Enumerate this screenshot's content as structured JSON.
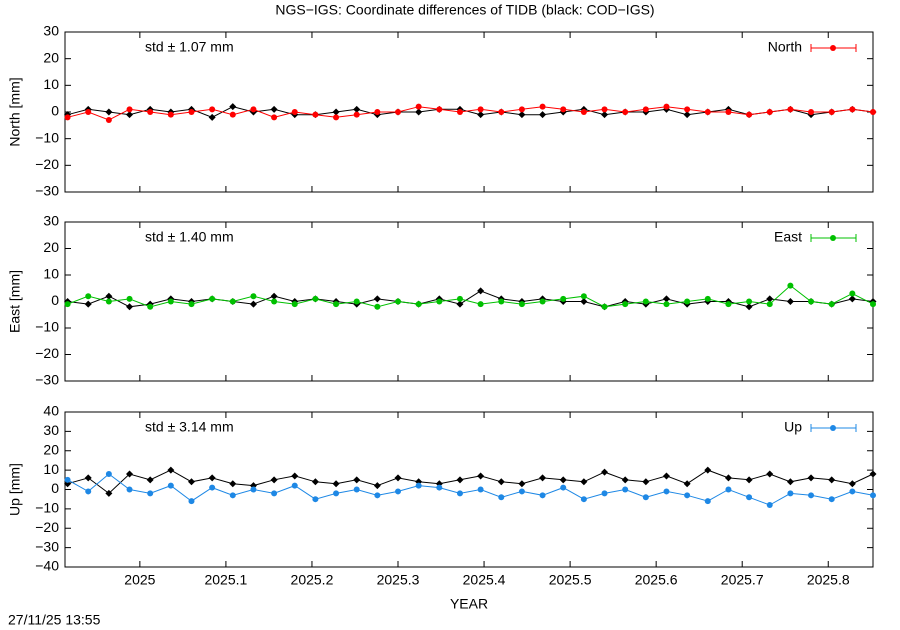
{
  "title": "NGS−IGS: Coordinate differences of TIDB (black: COD−IGS)",
  "timestamp": "27/11/25 13:55",
  "chart_data": [
    {
      "type": "line",
      "ylabel": "North [mm]",
      "annotation": "std ± 1.07 mm",
      "annotation_color": "#ff0000",
      "xlim": [
        2024.913,
        2025.852
      ],
      "xticks": [
        2025,
        2025.1,
        2025.2,
        2025.3,
        2025.4,
        2025.5,
        2025.6,
        2025.7,
        2025.8
      ],
      "xtick_labels": false,
      "ylim": [
        -30,
        30
      ],
      "yticks": [
        {
          "value": -30,
          "label": "−30"
        },
        {
          "value": -20,
          "label": "−20"
        },
        {
          "value": -10,
          "label": "−10"
        },
        0,
        10,
        20,
        30
      ],
      "x": [
        2024.916,
        2024.94,
        2024.964,
        2024.988,
        2025.012,
        2025.036,
        2025.06,
        2025.084,
        2025.108,
        2025.132,
        2025.156,
        2025.18,
        2025.204,
        2025.228,
        2025.252,
        2025.276,
        2025.3,
        2025.324,
        2025.348,
        2025.372,
        2025.396,
        2025.42,
        2025.444,
        2025.468,
        2025.492,
        2025.516,
        2025.54,
        2025.564,
        2025.588,
        2025.612,
        2025.636,
        2025.66,
        2025.684,
        2025.708,
        2025.732,
        2025.756,
        2025.78,
        2025.804,
        2025.828,
        2025.852
      ],
      "series": [
        {
          "color": "#000000",
          "marker": "diamond",
          "values": [
            -1,
            1,
            0,
            -1,
            1,
            0,
            1,
            -2,
            2,
            0,
            1,
            -1,
            -1,
            0,
            1,
            -1,
            0,
            0,
            1,
            1,
            -1,
            0,
            -1,
            -1,
            0,
            1,
            -1,
            0,
            0,
            1,
            -1,
            0,
            1,
            -1,
            0,
            1,
            -1,
            0,
            1,
            0
          ]
        },
        {
          "name": "North",
          "color": "#ff0000",
          "marker": "circle",
          "values": [
            -2,
            0,
            -3,
            1,
            0,
            -1,
            0,
            1,
            -1,
            1,
            -2,
            0,
            -1,
            -2,
            -1,
            0,
            0,
            2,
            1,
            0,
            1,
            0,
            1,
            2,
            1,
            0,
            1,
            0,
            1,
            2,
            1,
            0,
            0,
            -1,
            0,
            1,
            0,
            0,
            1,
            0
          ]
        }
      ]
    },
    {
      "type": "line",
      "ylabel": "East [mm]",
      "annotation": "std ± 1.40 mm",
      "annotation_color": "#00c000",
      "xlim": [
        2024.913,
        2025.852
      ],
      "xticks": [
        2025,
        2025.1,
        2025.2,
        2025.3,
        2025.4,
        2025.5,
        2025.6,
        2025.7,
        2025.8
      ],
      "xtick_labels": false,
      "ylim": [
        -30,
        30
      ],
      "yticks": [
        {
          "value": -30,
          "label": "−30"
        },
        {
          "value": -20,
          "label": "−20"
        },
        {
          "value": -10,
          "label": "−10"
        },
        0,
        10,
        20,
        30
      ],
      "x": [
        2024.916,
        2024.94,
        2024.964,
        2024.988,
        2025.012,
        2025.036,
        2025.06,
        2025.084,
        2025.108,
        2025.132,
        2025.156,
        2025.18,
        2025.204,
        2025.228,
        2025.252,
        2025.276,
        2025.3,
        2025.324,
        2025.348,
        2025.372,
        2025.396,
        2025.42,
        2025.444,
        2025.468,
        2025.492,
        2025.516,
        2025.54,
        2025.564,
        2025.588,
        2025.612,
        2025.636,
        2025.66,
        2025.684,
        2025.708,
        2025.732,
        2025.756,
        2025.78,
        2025.804,
        2025.828,
        2025.852
      ],
      "series": [
        {
          "color": "#000000",
          "marker": "diamond",
          "values": [
            0,
            -1,
            2,
            -2,
            -1,
            1,
            0,
            1,
            0,
            -1,
            2,
            0,
            1,
            0,
            -1,
            1,
            0,
            -1,
            1,
            -1,
            4,
            1,
            0,
            1,
            0,
            0,
            -2,
            0,
            -1,
            1,
            -1,
            0,
            0,
            -2,
            1,
            0,
            0,
            -1,
            1,
            0
          ]
        },
        {
          "name": "East",
          "color": "#00c000",
          "marker": "circle",
          "values": [
            -1,
            2,
            0,
            1,
            -2,
            0,
            -1,
            1,
            0,
            2,
            0,
            -1,
            1,
            -1,
            0,
            -2,
            0,
            -1,
            0,
            1,
            -1,
            0,
            -1,
            0,
            1,
            2,
            -2,
            -1,
            0,
            -1,
            0,
            1,
            -1,
            0,
            -1,
            6,
            0,
            -1,
            3,
            -1
          ]
        }
      ]
    },
    {
      "type": "line",
      "ylabel": "Up [mm]",
      "annotation": "std ± 3.14 mm",
      "annotation_color": "#1e88e5",
      "xlabel": "YEAR",
      "xlim": [
        2024.913,
        2025.852
      ],
      "xticks": [
        2025,
        2025.1,
        2025.2,
        2025.3,
        2025.4,
        2025.5,
        2025.6,
        2025.7,
        2025.8
      ],
      "xtick_labels": true,
      "ylim": [
        -40,
        40
      ],
      "yticks": [
        {
          "value": -40,
          "label": "−40"
        },
        {
          "value": -30,
          "label": "−30"
        },
        {
          "value": -20,
          "label": "−20"
        },
        {
          "value": -10,
          "label": "−10"
        },
        0,
        10,
        20,
        30,
        40
      ],
      "x": [
        2024.916,
        2024.94,
        2024.964,
        2024.988,
        2025.012,
        2025.036,
        2025.06,
        2025.084,
        2025.108,
        2025.132,
        2025.156,
        2025.18,
        2025.204,
        2025.228,
        2025.252,
        2025.276,
        2025.3,
        2025.324,
        2025.348,
        2025.372,
        2025.396,
        2025.42,
        2025.444,
        2025.468,
        2025.492,
        2025.516,
        2025.54,
        2025.564,
        2025.588,
        2025.612,
        2025.636,
        2025.66,
        2025.684,
        2025.708,
        2025.732,
        2025.756,
        2025.78,
        2025.804,
        2025.828,
        2025.852
      ],
      "series": [
        {
          "color": "#000000",
          "marker": "diamond",
          "values": [
            3,
            6,
            -2,
            8,
            5,
            10,
            4,
            6,
            3,
            2,
            5,
            7,
            4,
            3,
            5,
            2,
            6,
            4,
            3,
            5,
            7,
            4,
            3,
            6,
            5,
            4,
            9,
            5,
            4,
            7,
            3,
            10,
            6,
            5,
            8,
            4,
            6,
            5,
            3,
            8
          ]
        },
        {
          "name": "Up",
          "color": "#1e88e5",
          "marker": "circle",
          "values": [
            5,
            -1,
            8,
            0,
            -2,
            2,
            -6,
            1,
            -3,
            0,
            -2,
            2,
            -5,
            -2,
            0,
            -3,
            -1,
            2,
            1,
            -2,
            0,
            -4,
            -1,
            -3,
            1,
            -5,
            -2,
            0,
            -4,
            -1,
            -3,
            -6,
            0,
            -4,
            -8,
            -2,
            -3,
            -5,
            -1,
            -3
          ]
        }
      ]
    }
  ]
}
